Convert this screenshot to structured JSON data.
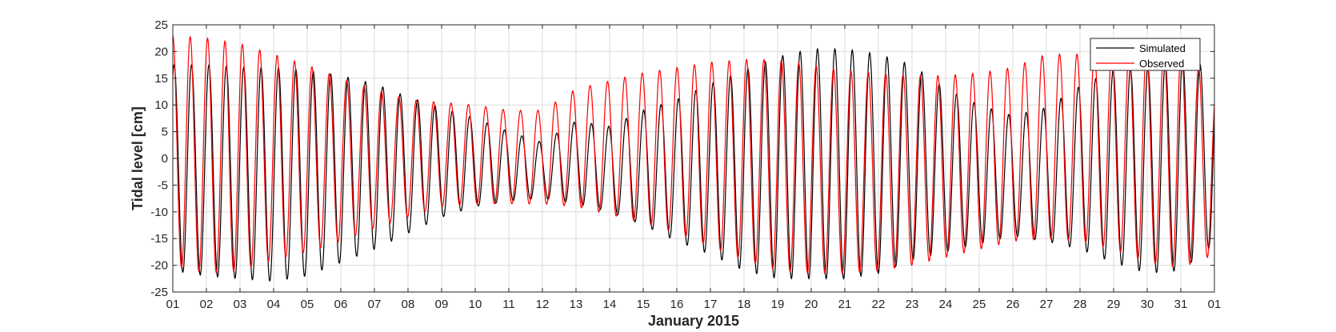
{
  "chart_data": {
    "type": "line",
    "title": "",
    "xlabel": "January 2015",
    "ylabel": "Tidal level [cm]",
    "ylim": [
      -25,
      25
    ],
    "yticks": [
      -25,
      -20,
      -15,
      -10,
      -5,
      0,
      5,
      10,
      15,
      20,
      25
    ],
    "xlim": [
      "2015-01-01",
      "2015-02-01"
    ],
    "xtick_labels": [
      "01",
      "02",
      "03",
      "04",
      "05",
      "06",
      "07",
      "08",
      "09",
      "10",
      "11",
      "12",
      "13",
      "14",
      "15",
      "16",
      "17",
      "18",
      "19",
      "20",
      "21",
      "22",
      "23",
      "24",
      "25",
      "26",
      "27",
      "28",
      "29",
      "30",
      "31",
      "01"
    ],
    "grid": true,
    "legend_position": "top-right",
    "series": [
      {
        "name": "Simulated",
        "color": "#000000",
        "daily_high": [
          17.5,
          17.5,
          17.0,
          17.0,
          16.5,
          15.5,
          14.0,
          11.5,
          9.5,
          7.5,
          5.0,
          3.0,
          7.0,
          6.0,
          9.0,
          11.0,
          14.0,
          16.5,
          19.0,
          20.5,
          20.5,
          19.5,
          17.5,
          13.0,
          10.0,
          8.0,
          9.5,
          13.5,
          16.5,
          17.0,
          18.5,
          17.0
        ],
        "daily_low": [
          -21.0,
          -22.0,
          -22.5,
          -23.0,
          -22.0,
          -19.5,
          -17.0,
          -14.0,
          -11.0,
          -9.0,
          -8.0,
          -7.5,
          -8.5,
          -10.0,
          -12.5,
          -15.5,
          -18.0,
          -21.0,
          -22.5,
          -22.5,
          -22.5,
          -21.5,
          -19.0,
          -17.5,
          -16.0,
          -14.5,
          -15.5,
          -17.0,
          -19.5,
          -21.5,
          -21.0,
          -16.0
        ]
      },
      {
        "name": "Observed",
        "color": "#ff0000",
        "daily_high": [
          23.0,
          22.5,
          21.5,
          19.5,
          17.5,
          15.0,
          13.0,
          11.0,
          10.5,
          10.0,
          9.0,
          9.0,
          13.0,
          14.5,
          16.0,
          17.0,
          18.0,
          18.5,
          18.5,
          17.5,
          16.5,
          16.0,
          15.5,
          15.5,
          16.0,
          17.0,
          19.5,
          19.5,
          20.0,
          20.5,
          21.5,
          13.0
        ],
        "daily_low": [
          -20.0,
          -21.5,
          -21.0,
          -19.0,
          -17.5,
          -15.5,
          -13.0,
          -11.0,
          -9.0,
          -8.5,
          -8.5,
          -8.5,
          -9.0,
          -10.5,
          -12.0,
          -14.0,
          -16.5,
          -19.0,
          -21.0,
          -21.5,
          -21.5,
          -21.0,
          -20.0,
          -18.5,
          -17.0,
          -15.5,
          -15.0,
          -15.5,
          -17.0,
          -19.5,
          -20.5,
          -18.0
        ]
      }
    ]
  }
}
